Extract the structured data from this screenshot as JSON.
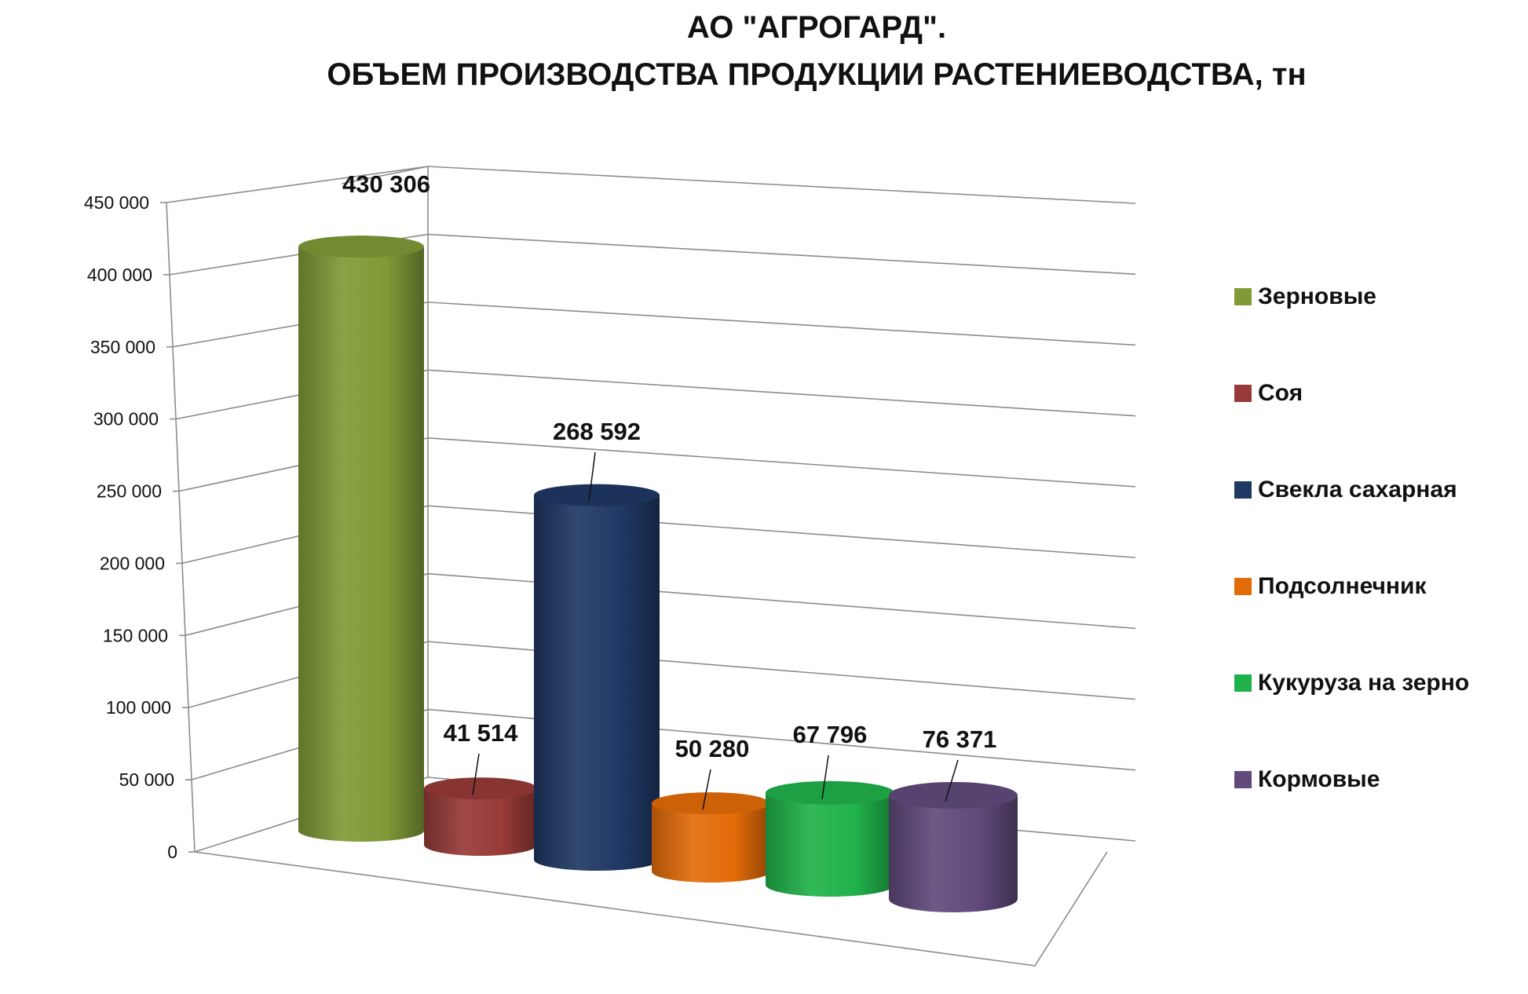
{
  "chart_data": {
    "type": "bar",
    "title_line_1": "АО \"АГРОГАРД\".",
    "title_line_2": "ОБЪЕМ ПРОИЗВОДСТВА ПРОДУКЦИИ РАСТЕНИЕВОДСТВА, тн",
    "ylim": [
      0,
      450000
    ],
    "y_ticks": [
      0,
      50000,
      100000,
      150000,
      200000,
      250000,
      300000,
      350000,
      400000,
      450000
    ],
    "y_tick_labels": [
      "0",
      "50 000",
      "100 000",
      "150 000",
      "200 000",
      "250 000",
      "300 000",
      "350 000",
      "400 000",
      "450 000"
    ],
    "grid": true,
    "legend_position": "right",
    "series": [
      {
        "name": "Зерновые",
        "value": 430306,
        "label": "430 306",
        "color": "#7f9a37"
      },
      {
        "name": "Соя",
        "value": 41514,
        "label": "41 514",
        "color": "#973a38"
      },
      {
        "name": "Свекла сахарная",
        "value": 268592,
        "label": "268 592",
        "color": "#1f3864"
      },
      {
        "name": "Подсолнечник",
        "value": 50280,
        "label": "50 280",
        "color": "#e36c09"
      },
      {
        "name": "Кукуруза на зерно",
        "value": 67796,
        "label": "67 796",
        "color": "#20b24a"
      },
      {
        "name": "Кормовые",
        "value": 76371,
        "label": "76 371",
        "color": "#604a7b"
      }
    ]
  }
}
